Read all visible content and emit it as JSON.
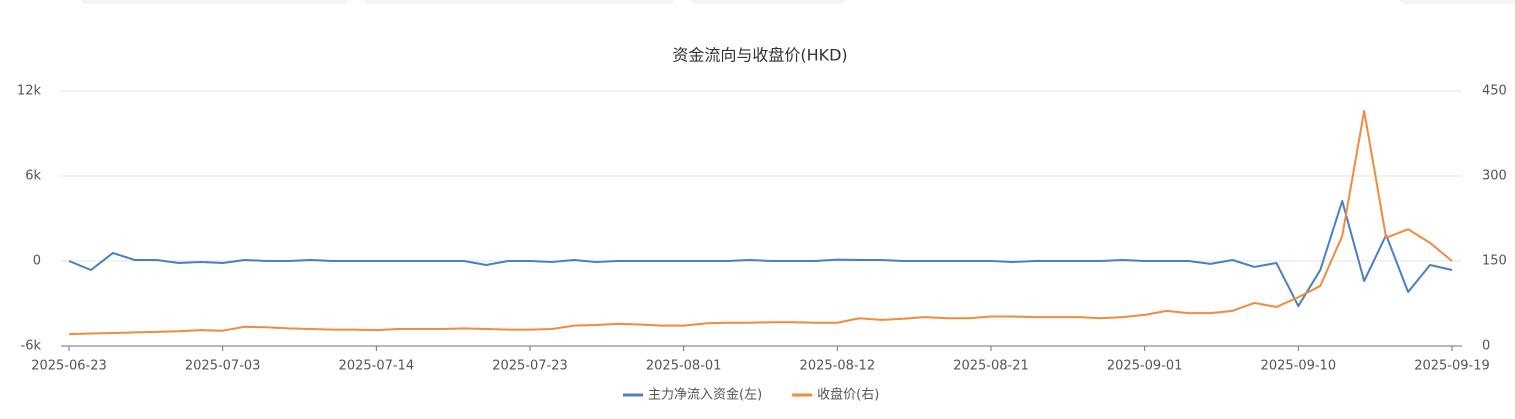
{
  "chart_data": {
    "type": "line",
    "title": "资金流向与收盘价(HKD)",
    "categories": [
      "2025-06-23",
      "2025-06-24",
      "2025-06-25",
      "2025-06-26",
      "2025-06-27",
      "2025-06-30",
      "2025-07-02",
      "2025-07-03",
      "2025-07-04",
      "2025-07-07",
      "2025-07-08",
      "2025-07-09",
      "2025-07-10",
      "2025-07-11",
      "2025-07-14",
      "2025-07-15",
      "2025-07-16",
      "2025-07-17",
      "2025-07-18",
      "2025-07-21",
      "2025-07-22",
      "2025-07-23",
      "2025-07-24",
      "2025-07-25",
      "2025-07-28",
      "2025-07-29",
      "2025-07-30",
      "2025-07-31",
      "2025-08-01",
      "2025-08-04",
      "2025-08-05",
      "2025-08-06",
      "2025-08-07",
      "2025-08-08",
      "2025-08-11",
      "2025-08-12",
      "2025-08-13",
      "2025-08-14",
      "2025-08-15",
      "2025-08-18",
      "2025-08-19",
      "2025-08-20",
      "2025-08-21",
      "2025-08-22",
      "2025-08-25",
      "2025-08-26",
      "2025-08-27",
      "2025-08-28",
      "2025-08-29",
      "2025-09-01",
      "2025-09-02",
      "2025-09-03",
      "2025-09-04",
      "2025-09-05",
      "2025-09-08",
      "2025-09-09",
      "2025-09-10",
      "2025-09-11",
      "2025-09-12",
      "2025-09-15",
      "2025-09-16",
      "2025-09-17",
      "2025-09-18",
      "2025-09-19"
    ],
    "series": [
      {
        "name": "主力净流入资金(左)",
        "color": "#4a7fc0",
        "axis": "y",
        "values": [
          0,
          -635,
          565,
          70,
          70,
          -140,
          -70,
          -140,
          70,
          0,
          0,
          70,
          0,
          0,
          0,
          0,
          0,
          0,
          0,
          -280,
          0,
          0,
          -70,
          70,
          -70,
          0,
          0,
          0,
          0,
          0,
          0,
          70,
          0,
          0,
          0,
          100,
          70,
          70,
          0,
          0,
          0,
          0,
          0,
          -70,
          0,
          0,
          0,
          0,
          70,
          0,
          0,
          0,
          -200,
          70,
          -420,
          -140,
          -3180,
          -635,
          4235,
          -1410,
          1835,
          -2190,
          -280,
          -635
        ]
      },
      {
        "name": "收盘价(右)",
        "color": "#f28b3c",
        "axis": "y2",
        "values": [
          21,
          22,
          23,
          24,
          25,
          26,
          28,
          27,
          34,
          33,
          31,
          30,
          29,
          29,
          28,
          30,
          30,
          30,
          31,
          30,
          29,
          29,
          30,
          36,
          37,
          39,
          38,
          36,
          36,
          40,
          41,
          41,
          42,
          42,
          41,
          41,
          49,
          46,
          48,
          51,
          49,
          49,
          52,
          52,
          51,
          51,
          51,
          49,
          51,
          55,
          62,
          58,
          58,
          62,
          76,
          69,
          86,
          106,
          194,
          415,
          191,
          206,
          182,
          150
        ]
      }
    ],
    "ylim": [
      -6000,
      12000
    ],
    "yticks": [
      {
        "value": -6000,
        "label": "-6k"
      },
      0,
      {
        "value": 6000,
        "label": "6k"
      },
      {
        "value": 12000,
        "label": "12k"
      }
    ],
    "y2lim": [
      0,
      450
    ],
    "y2ticks": [
      0,
      150,
      300,
      450
    ],
    "grid": true
  }
}
